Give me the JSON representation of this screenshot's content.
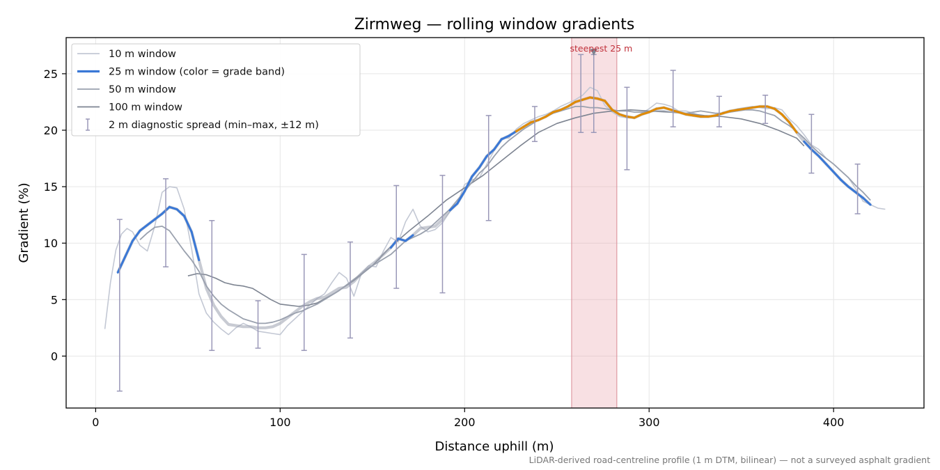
{
  "chart_data": {
    "type": "line",
    "title": "Zirmweg — rolling window gradients",
    "xlabel": "Distance uphill (m)",
    "ylabel": "Gradient (%)",
    "xlim": [
      -16,
      449
    ],
    "ylim": [
      -4.6,
      28.2
    ],
    "xticks": [
      0,
      100,
      200,
      300,
      400
    ],
    "yticks": [
      0,
      5,
      10,
      15,
      20,
      25
    ],
    "grid": true,
    "legend_position": "top-left",
    "footnote": "LiDAR-derived road-centreline profile (1 m DTM, bilinear) — not a surveyed asphalt gradient",
    "colors": {
      "w10": "#c3c8d4",
      "w25_blue": "#3a78d6",
      "w25_orange": "#e08a00",
      "w50": "#9aa1ae",
      "w100": "#7d8491",
      "errorbar": "#9a98b8",
      "highlight": "#e8a0a8",
      "highlight_edge": "#d98a94",
      "marker": "#7d8491",
      "grid": "#e6e6e6"
    },
    "legend": [
      {
        "key": "w10",
        "label": "10 m window"
      },
      {
        "key": "w25",
        "label": "25 m window (color = grade band)"
      },
      {
        "key": "w50",
        "label": "50 m window"
      },
      {
        "key": "w100",
        "label": "100 m window"
      },
      {
        "key": "err",
        "label": "2 m diagnostic spread (min–max, ±12 m)"
      }
    ],
    "highlight": {
      "x0": 258,
      "x1": 282.5,
      "label": "steepest 25 m",
      "peak_x": 270,
      "peak_y": 26.9
    },
    "series": [
      {
        "name": "10 m window",
        "key": "w10",
        "x": [
          5,
          8,
          11,
          14,
          17,
          20,
          24,
          28,
          32,
          36,
          40,
          44,
          48,
          52,
          56,
          60,
          64,
          68,
          72,
          76,
          80,
          84,
          88,
          92,
          96,
          100,
          104,
          108,
          112,
          116,
          120,
          124,
          128,
          132,
          136,
          140,
          144,
          148,
          152,
          156,
          160,
          164,
          168,
          172,
          176,
          180,
          184,
          188,
          192,
          196,
          200,
          204,
          208,
          212,
          216,
          220,
          224,
          228,
          232,
          236,
          240,
          244,
          248,
          252,
          256,
          260,
          264,
          268,
          272,
          276,
          280,
          284,
          288,
          292,
          296,
          300,
          304,
          308,
          312,
          316,
          320,
          324,
          328,
          332,
          336,
          340,
          344,
          348,
          352,
          356,
          360,
          364,
          368,
          372,
          376,
          380,
          384,
          388,
          392,
          396,
          400,
          404,
          408,
          412,
          416,
          420,
          424,
          428
        ],
        "y": [
          2.4,
          6.5,
          9.4,
          10.8,
          11.3,
          11,
          9.8,
          9.3,
          11.5,
          14.5,
          15,
          14.9,
          13,
          9.5,
          5.5,
          3.8,
          3,
          2.4,
          1.9,
          2.5,
          2.9,
          2.6,
          2.2,
          2.1,
          2,
          1.9,
          2.7,
          3.3,
          3.9,
          4.5,
          5.1,
          5.5,
          6.5,
          7.4,
          6.9,
          5.3,
          7.3,
          8,
          7.9,
          9.3,
          10.5,
          10.1,
          11.9,
          13,
          11.5,
          11,
          11.2,
          11.8,
          12.8,
          13.5,
          15.2,
          15.6,
          15.8,
          17,
          18.2,
          19.3,
          19.3,
          20.1,
          20.6,
          20.9,
          21.2,
          21.4,
          21.7,
          22.1,
          22.4,
          22.7,
          23.1,
          23.8,
          23.5,
          22.2,
          21.6,
          21.2,
          21.1,
          21.1,
          21.5,
          21.9,
          22.4,
          22.3,
          22.1,
          21.7,
          21.7,
          21.5,
          21.3,
          21.2,
          21.2,
          21.6,
          21.7,
          21.9,
          22,
          22.1,
          22,
          21.9,
          22,
          21.8,
          21,
          20.4,
          19.6,
          18.7,
          18.3,
          17.5,
          17,
          16.4,
          15.8,
          14.8,
          13.7,
          13.4,
          13.1,
          13
        ]
      },
      {
        "name": "25 m window",
        "key": "w25",
        "x": [
          12,
          16,
          20,
          24,
          28,
          32,
          36,
          40,
          44,
          48,
          52,
          56,
          60,
          64,
          68,
          72,
          76,
          80,
          84,
          88,
          92,
          96,
          100,
          104,
          108,
          112,
          116,
          120,
          124,
          128,
          132,
          136,
          140,
          144,
          148,
          152,
          156,
          160,
          164,
          168,
          172,
          176,
          180,
          184,
          188,
          192,
          196,
          200,
          204,
          208,
          212,
          216,
          220,
          224,
          228,
          232,
          236,
          240,
          244,
          248,
          252,
          256,
          260,
          264,
          268,
          272,
          276,
          280,
          284,
          288,
          292,
          296,
          300,
          304,
          308,
          312,
          316,
          320,
          324,
          328,
          332,
          336,
          340,
          344,
          348,
          352,
          356,
          360,
          364,
          368,
          372,
          376,
          380,
          384,
          388,
          392,
          396,
          400,
          404,
          408,
          412,
          416,
          420
        ],
        "y": [
          7.4,
          8.8,
          10.2,
          11.1,
          11.6,
          12.1,
          12.6,
          13.2,
          13,
          12.4,
          11,
          8.5,
          6,
          4.5,
          3.5,
          2.8,
          2.7,
          2.6,
          2.6,
          2.5,
          2.5,
          2.6,
          2.9,
          3.4,
          3.9,
          4.4,
          4.8,
          5.1,
          5.2,
          5.6,
          6,
          6.1,
          6.6,
          7.3,
          7.9,
          8.4,
          9,
          9.6,
          10.4,
          10.2,
          10.7,
          11.3,
          11.4,
          11.5,
          12.1,
          12.9,
          13.5,
          14.6,
          15.9,
          16.7,
          17.7,
          18.3,
          19.2,
          19.5,
          19.9,
          20.3,
          20.7,
          20.9,
          21.2,
          21.6,
          21.8,
          22.1,
          22.5,
          22.7,
          22.9,
          22.8,
          22.6,
          21.8,
          21.4,
          21.2,
          21.1,
          21.4,
          21.6,
          21.9,
          22,
          21.8,
          21.6,
          21.4,
          21.3,
          21.2,
          21.2,
          21.3,
          21.5,
          21.7,
          21.8,
          21.9,
          22,
          22.1,
          22.1,
          21.9,
          21.4,
          20.7,
          19.8,
          19,
          18.3,
          17.7,
          17,
          16.3,
          15.6,
          15,
          14.5,
          14,
          13.4
        ]
      },
      {
        "name": "50 m window",
        "key": "w50",
        "x": [
          24,
          28,
          32,
          36,
          40,
          44,
          48,
          52,
          56,
          60,
          64,
          68,
          72,
          76,
          80,
          84,
          88,
          92,
          96,
          100,
          104,
          108,
          112,
          116,
          120,
          124,
          128,
          132,
          136,
          140,
          144,
          148,
          152,
          156,
          160,
          164,
          168,
          172,
          176,
          180,
          184,
          188,
          192,
          196,
          200,
          204,
          208,
          212,
          216,
          220,
          224,
          228,
          232,
          236,
          240,
          244,
          248,
          252,
          256,
          260,
          264,
          268,
          272,
          276,
          280,
          284,
          288,
          292,
          296,
          300,
          304,
          308,
          312,
          316,
          320,
          324,
          328,
          332,
          336,
          340,
          344,
          348,
          352,
          356,
          360,
          364,
          368,
          372,
          376,
          380,
          384,
          388,
          392,
          396,
          400,
          404,
          408,
          412,
          416,
          420
        ],
        "y": [
          10.3,
          10.9,
          11.4,
          11.5,
          11.1,
          10.2,
          9.3,
          8.5,
          7.5,
          6.2,
          5.3,
          4.6,
          4.1,
          3.7,
          3.3,
          3.1,
          2.9,
          2.9,
          3,
          3.2,
          3.5,
          3.8,
          4,
          4.3,
          4.6,
          5,
          5.4,
          5.8,
          6.3,
          6.8,
          7.3,
          7.8,
          8.2,
          8.6,
          9,
          9.6,
          10.2,
          10.5,
          10.8,
          11.2,
          11.8,
          12.4,
          13,
          13.8,
          14.6,
          15.4,
          16.2,
          16.8,
          17.7,
          18.5,
          19.1,
          19.6,
          20.1,
          20.5,
          20.9,
          21.2,
          21.5,
          21.7,
          21.9,
          22.1,
          22.1,
          22,
          22,
          21.9,
          21.8,
          21.7,
          21.7,
          21.6,
          21.6,
          21.6,
          21.7,
          21.7,
          21.6,
          21.6,
          21.5,
          21.6,
          21.7,
          21.6,
          21.5,
          21.5,
          21.6,
          21.7,
          21.8,
          21.8,
          21.7,
          21.5,
          21.3,
          20.8,
          20.4,
          19.9,
          19.3,
          18.6,
          18,
          17.5,
          17,
          16.4,
          15.8,
          15.1,
          14.5,
          13.8
        ]
      },
      {
        "name": "100 m window",
        "key": "w100",
        "x": [
          50,
          55,
          60,
          65,
          70,
          75,
          80,
          85,
          90,
          95,
          100,
          105,
          110,
          115,
          120,
          130,
          140,
          150,
          160,
          170,
          180,
          190,
          200,
          210,
          220,
          230,
          240,
          250,
          260,
          270,
          280,
          290,
          300,
          310,
          320,
          330,
          340,
          350,
          360,
          370,
          380,
          384
        ],
        "y": [
          7.1,
          7.3,
          7.2,
          6.9,
          6.5,
          6.3,
          6.2,
          6,
          5.5,
          5,
          4.6,
          4.5,
          4.4,
          4.5,
          4.7,
          5.6,
          6.7,
          8,
          9.7,
          11.1,
          12.4,
          13.8,
          14.9,
          16,
          17.3,
          18.6,
          19.8,
          20.6,
          21.1,
          21.5,
          21.7,
          21.8,
          21.7,
          21.6,
          21.5,
          21.3,
          21.2,
          21,
          20.6,
          20,
          19.3,
          18.6
        ]
      }
    ],
    "band_colors": [
      {
        "range": [
          0,
          20
        ],
        "color_key": "w25_blue"
      },
      {
        "range": [
          20,
          100
        ],
        "color_key": "w25_orange"
      }
    ],
    "errorbars": [
      {
        "x": 13,
        "min": -3.1,
        "max": 12.1
      },
      {
        "x": 38,
        "min": 7.9,
        "max": 15.7
      },
      {
        "x": 63,
        "min": 0.5,
        "max": 12
      },
      {
        "x": 88,
        "min": 0.7,
        "max": 4.9
      },
      {
        "x": 113,
        "min": 0.5,
        "max": 9
      },
      {
        "x": 138,
        "min": 1.6,
        "max": 10.1
      },
      {
        "x": 163,
        "min": 6,
        "max": 15.1
      },
      {
        "x": 188,
        "min": 5.6,
        "max": 16
      },
      {
        "x": 213,
        "min": 12,
        "max": 21.3
      },
      {
        "x": 238,
        "min": 19,
        "max": 22.1
      },
      {
        "x": 263,
        "min": 19.8,
        "max": 26.7
      },
      {
        "x": 270,
        "min": 19.8,
        "max": 26.7
      },
      {
        "x": 288,
        "min": 16.5,
        "max": 23.8
      },
      {
        "x": 313,
        "min": 20.3,
        "max": 25.3
      },
      {
        "x": 338,
        "min": 20.3,
        "max": 23
      },
      {
        "x": 363,
        "min": 20.6,
        "max": 23.1
      },
      {
        "x": 388,
        "min": 16.2,
        "max": 21.4
      },
      {
        "x": 413,
        "min": 12.6,
        "max": 17
      }
    ]
  }
}
